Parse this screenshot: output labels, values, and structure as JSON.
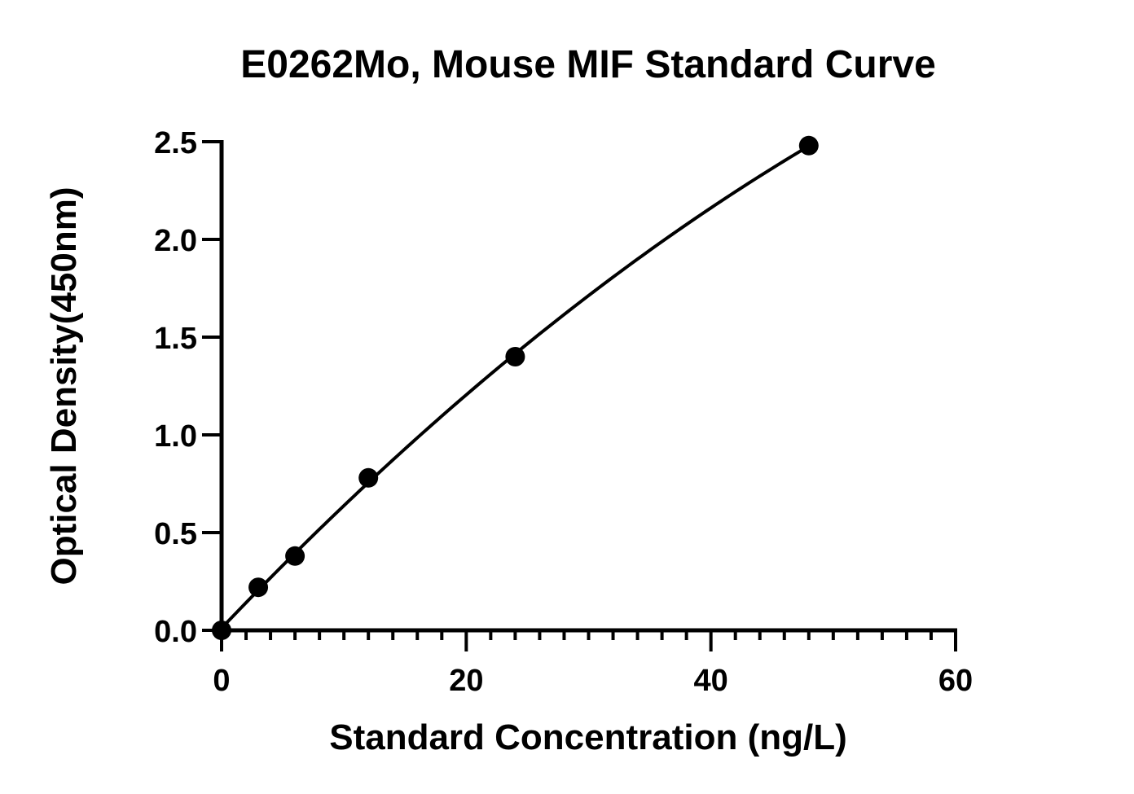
{
  "chart_data": {
    "type": "scatter",
    "title": "E0262Mo, Mouse MIF  Standard Curve",
    "xlabel": "Standard Concentration (ng/L)",
    "ylabel": "Optical Density(450nm)",
    "xlim": [
      0,
      60
    ],
    "ylim": [
      0,
      2.5
    ],
    "x_ticks": [
      "0",
      "20",
      "40",
      "60"
    ],
    "y_ticks": [
      "0.0",
      "0.5",
      "1.0",
      "1.5",
      "2.0",
      "2.5"
    ],
    "x_minor_step": 2,
    "grid": false,
    "series": [
      {
        "x": [
          0,
          3,
          6,
          12,
          24,
          48
        ],
        "values": [
          0.0,
          0.22,
          0.38,
          0.78,
          1.4,
          2.48
        ],
        "marker": "circle",
        "color": "#000000",
        "fit_curve": true
      }
    ]
  }
}
